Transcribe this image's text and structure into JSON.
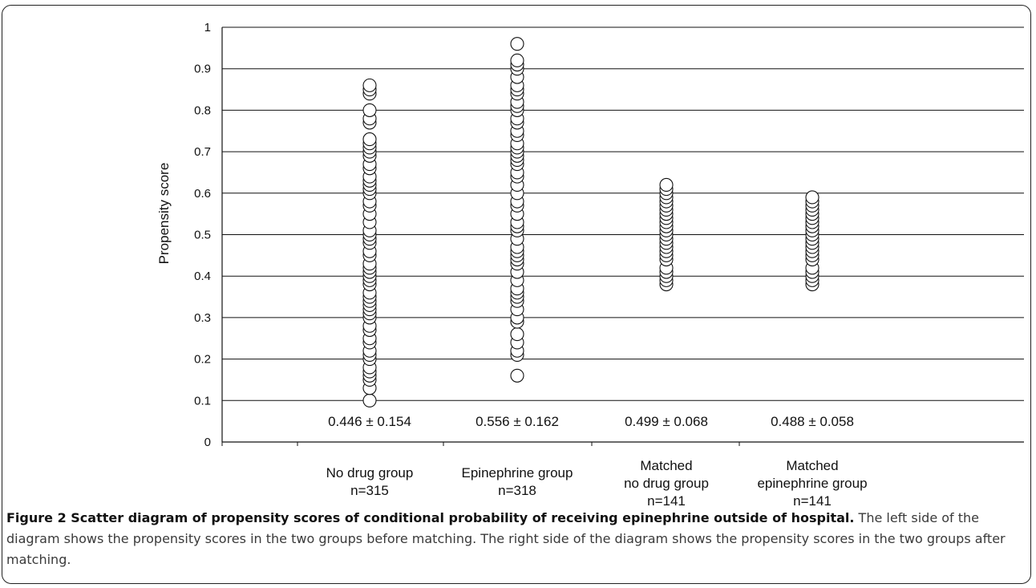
{
  "chart_data": {
    "type": "scatter",
    "ylabel": "Propensity score",
    "xlabel": "",
    "ylim": [
      0,
      1
    ],
    "yticks": [
      "0",
      "0.1",
      "0.2",
      "0.3",
      "0.4",
      "0.5",
      "0.6",
      "0.7",
      "0.8",
      "0.9",
      "1"
    ],
    "grid": true,
    "categories": [
      [
        "No drug group",
        "n=315"
      ],
      [
        "Epinephrine group",
        "n=318"
      ],
      [
        "Matched",
        "no drug group",
        "n=141"
      ],
      [
        "Matched",
        "epinephrine group",
        "n=141"
      ]
    ],
    "annotations": [
      "0.446 ± 0.154",
      "0.556 ± 0.162",
      "0.499 ± 0.068",
      "0.488 ± 0.058"
    ],
    "series": [
      {
        "values": [
          0.1,
          0.13,
          0.15,
          0.16,
          0.17,
          0.18,
          0.2,
          0.21,
          0.22,
          0.24,
          0.25,
          0.27,
          0.28,
          0.3,
          0.31,
          0.32,
          0.33,
          0.34,
          0.35,
          0.36,
          0.38,
          0.39,
          0.4,
          0.41,
          0.42,
          0.43,
          0.45,
          0.46,
          0.48,
          0.49,
          0.5,
          0.51,
          0.53,
          0.55,
          0.57,
          0.58,
          0.6,
          0.61,
          0.62,
          0.63,
          0.64,
          0.66,
          0.67,
          0.69,
          0.7,
          0.71,
          0.72,
          0.73,
          0.77,
          0.78,
          0.8,
          0.84,
          0.85,
          0.86
        ]
      },
      {
        "values": [
          0.16,
          0.21,
          0.22,
          0.24,
          0.26,
          0.29,
          0.3,
          0.32,
          0.34,
          0.35,
          0.36,
          0.37,
          0.39,
          0.41,
          0.43,
          0.44,
          0.45,
          0.46,
          0.47,
          0.49,
          0.51,
          0.52,
          0.53,
          0.55,
          0.57,
          0.58,
          0.6,
          0.62,
          0.64,
          0.65,
          0.67,
          0.68,
          0.69,
          0.7,
          0.71,
          0.72,
          0.74,
          0.75,
          0.77,
          0.78,
          0.8,
          0.81,
          0.82,
          0.84,
          0.85,
          0.86,
          0.88,
          0.9,
          0.91,
          0.92,
          0.96
        ]
      },
      {
        "values": [
          0.38,
          0.39,
          0.4,
          0.41,
          0.42,
          0.44,
          0.45,
          0.46,
          0.47,
          0.48,
          0.49,
          0.5,
          0.51,
          0.52,
          0.53,
          0.54,
          0.55,
          0.56,
          0.57,
          0.58,
          0.59,
          0.6,
          0.61,
          0.62
        ]
      },
      {
        "values": [
          0.38,
          0.39,
          0.4,
          0.41,
          0.42,
          0.44,
          0.45,
          0.46,
          0.47,
          0.48,
          0.49,
          0.5,
          0.51,
          0.52,
          0.53,
          0.54,
          0.55,
          0.56,
          0.57,
          0.58,
          0.59
        ]
      }
    ]
  },
  "caption": {
    "title": "Figure 2 Scatter diagram of propensity scores of conditional probability of receiving epinephrine outside of hospital.",
    "body": " The left side of the diagram shows the propensity scores in the two groups before matching. The right side of the diagram shows the propensity scores in the two groups after matching."
  }
}
